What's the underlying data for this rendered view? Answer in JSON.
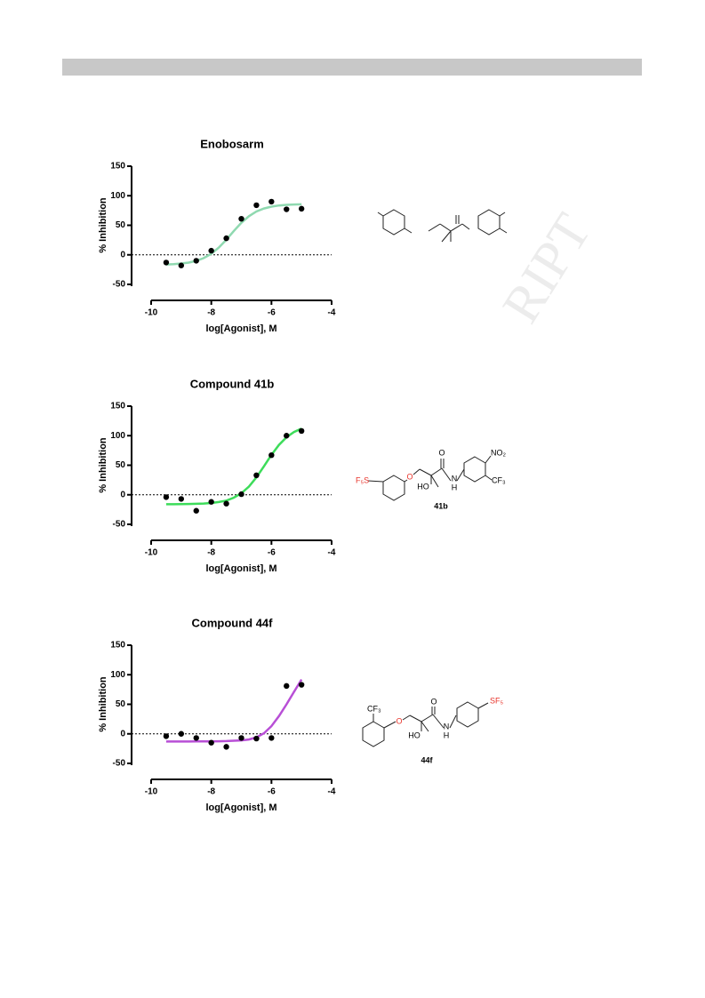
{
  "chart_data": [
    {
      "type": "scatter",
      "title": "Enobosarm",
      "xlabel": "log[Agonist], M",
      "ylabel": "% Inhibition",
      "x": [
        -9.5,
        -9,
        -8.5,
        -8,
        -7.5,
        -7,
        -6.5,
        -6,
        -5.5,
        -5
      ],
      "values": [
        -13,
        -18,
        -10,
        7,
        28,
        61,
        84,
        90,
        77,
        78
      ],
      "color": "#000000",
      "curve": {
        "x": [
          -9.5,
          -9.25,
          -9,
          -8.75,
          -8.5,
          -8.25,
          -8,
          -7.75,
          -7.5,
          -7.25,
          -7,
          -6.75,
          -6.5,
          -6.25,
          -6,
          -5.75,
          -5.5,
          -5.25,
          -5
        ],
        "values": [
          -16.3,
          -15.7,
          -14.7,
          -13.1,
          -10.2,
          -5.5,
          1.8,
          12.3,
          25.7,
          40.4,
          54.2,
          65.3,
          73.3,
          78.4,
          81.6,
          83.5,
          84.6,
          85.2,
          85.5
        ],
        "color": "#8fd9b0"
      },
      "xlim": [
        -10,
        -4
      ],
      "ylim": [
        -50,
        150
      ],
      "xticks": [
        -10,
        -8,
        -6,
        -4
      ],
      "yticks": [
        -50,
        0,
        50,
        100,
        150
      ],
      "hline": 0
    },
    {
      "type": "scatter",
      "title": "Compound 41b",
      "xlabel": "log[Agonist], M",
      "ylabel": "% Inhibition",
      "x": [
        -9.5,
        -9,
        -8.5,
        -8,
        -7.5,
        -7,
        -6.5,
        -6,
        -5.5,
        -5
      ],
      "values": [
        -4,
        -7,
        -27,
        -12,
        -15,
        1,
        33,
        67,
        100,
        108
      ],
      "color": "#000000",
      "curve": {
        "x": [
          -9.5,
          -9.25,
          -9,
          -8.75,
          -8.5,
          -8.25,
          -8,
          -7.75,
          -7.5,
          -7.25,
          -7,
          -6.75,
          -6.5,
          -6.25,
          -6,
          -5.75,
          -5.5,
          -5.25,
          -5
        ],
        "values": [
          -16,
          -16,
          -15.8,
          -15.6,
          -15.3,
          -14.8,
          -13.9,
          -12.3,
          -9.8,
          -4.9,
          2.6,
          13.9,
          29.4,
          48.2,
          67.4,
          84.4,
          97.3,
          106.3,
          111.9
        ],
        "color": "#3ddc5a"
      },
      "xlim": [
        -10,
        -4
      ],
      "ylim": [
        -50,
        150
      ],
      "xticks": [
        -10,
        -8,
        -6,
        -4
      ],
      "yticks": [
        -50,
        0,
        50,
        100,
        150
      ],
      "hline": 0
    },
    {
      "type": "scatter",
      "title": "Compound 44f",
      "xlabel": "log[Agonist], M",
      "ylabel": "% Inhibition",
      "x": [
        -9.5,
        -9,
        -8.5,
        -8,
        -7.5,
        -7,
        -6.5,
        -6,
        -5.5,
        -5
      ],
      "values": [
        -4,
        0,
        -7,
        -15,
        -22,
        -7,
        -8,
        -7,
        81,
        83
      ],
      "color": "#000000",
      "curve": {
        "x": [
          -9.5,
          -9.25,
          -9,
          -8.75,
          -8.5,
          -8.25,
          -8,
          -7.75,
          -7.5,
          -7.25,
          -7,
          -6.75,
          -6.5,
          -6.25,
          -6,
          -5.75,
          -5.5,
          -5.25,
          -5
        ],
        "values": [
          -13,
          -13,
          -13,
          -13,
          -12.9,
          -12.8,
          -12.7,
          -12.5,
          -12.2,
          -11.7,
          -11,
          -9.5,
          -6,
          1,
          13,
          30,
          50,
          71,
          92
        ],
        "color": "#b84fd6"
      },
      "xlim": [
        -10,
        -4
      ],
      "ylim": [
        -50,
        150
      ],
      "xticks": [
        -10,
        -8,
        -6,
        -4
      ],
      "yticks": [
        -50,
        0,
        50,
        100,
        150
      ],
      "hline": 0
    }
  ],
  "structures": [
    {
      "labels": [
        "F₅S",
        "O",
        "O",
        "HO",
        "N",
        "H",
        "NO₂",
        "CF₃"
      ],
      "name": "41b"
    },
    {
      "labels": [
        "CF₃",
        "O",
        "O",
        "HO",
        "N",
        "H",
        "SF₅"
      ],
      "name": "44f"
    }
  ],
  "watermark": "RIPT"
}
